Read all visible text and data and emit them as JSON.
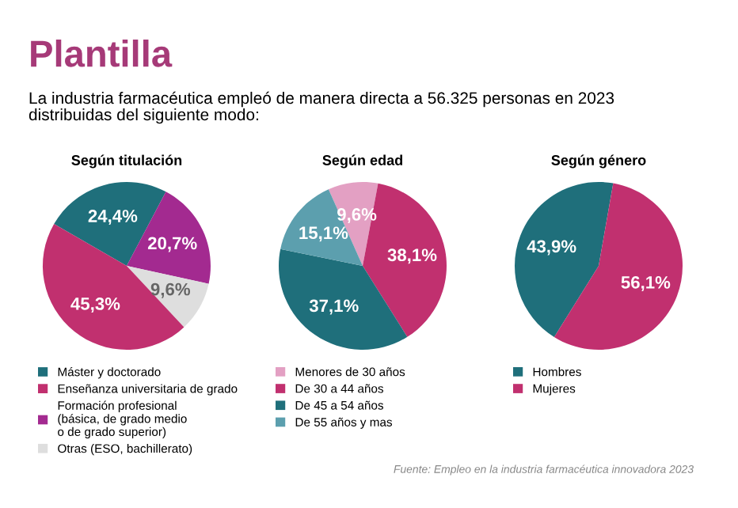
{
  "chart_data": [
    {
      "type": "pie",
      "title": "Según titulación",
      "annotations": [
        "Plantilla",
        "La industria farmacéutica empleó de manera directa a 56.325 personas en 2023\ndistribuidas del siguiente modo:"
      ],
      "categories": [
        "Máster y doctorado",
        "Enseñanza universitaria de grado",
        "Formación profesional\n(básica, de grado medio\no de grado superior)",
        "Otras (ESO, bachillerato)"
      ],
      "values": [
        24.4,
        45.3,
        20.7,
        9.6
      ],
      "value_labels": [
        "24,4%",
        "45,3%",
        "20,7%",
        "9,6%"
      ],
      "colors": [
        "#1f6f7b",
        "#c1306f",
        "#a32a90",
        "#dedede"
      ],
      "legend": "bottom"
    },
    {
      "type": "pie",
      "title": "Según edad",
      "categories": [
        "Menores de 30 años",
        "De 30 a 44 años",
        "De 45 a 54 años",
        "De 55 años y mas"
      ],
      "values": [
        9.6,
        38.1,
        37.1,
        15.1
      ],
      "value_labels": [
        "9,6%",
        "38,1%",
        "37,1%",
        "15,1%"
      ],
      "colors": [
        "#e3a0c3",
        "#c1306f",
        "#1f6f7b",
        "#5c9fae"
      ],
      "legend": "bottom"
    },
    {
      "type": "pie",
      "title": "Según género",
      "annotations": [
        "Fuente: Empleo en la industria farmacéutica innovadora 2023"
      ],
      "categories": [
        "Hombres",
        "Mujeres"
      ],
      "values": [
        43.9,
        56.1
      ],
      "value_labels": [
        "43,9%",
        "56,1%"
      ],
      "colors": [
        "#1f6f7b",
        "#c1306f"
      ],
      "legend": "bottom"
    }
  ]
}
